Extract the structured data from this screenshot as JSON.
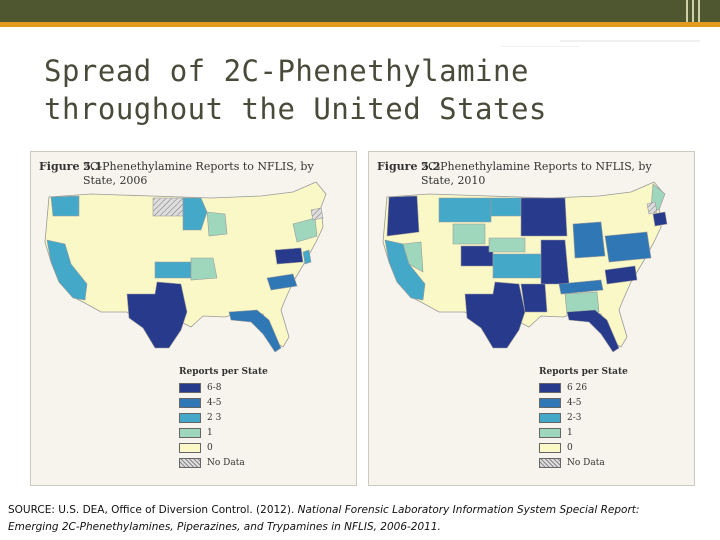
{
  "slide": {
    "title_line1": "Spread of 2C-Phenethylamine",
    "title_line2": "throughout the United States"
  },
  "figures": [
    {
      "label": "Figure 5.1",
      "title": "2C-Phenethylamine Reports to NFLIS, by State, 2006",
      "legend_title": "Reports per State",
      "legend": [
        {
          "label": "6-8",
          "color": "#283a8c"
        },
        {
          "label": "4-5",
          "color": "#2f77b5"
        },
        {
          "label": "2 3",
          "color": "#44a8c9"
        },
        {
          "label": "1",
          "color": "#9fd7bd"
        },
        {
          "label": "0",
          "color": "#fbf8c7"
        },
        {
          "label": "No Data",
          "color": "nodata"
        }
      ]
    },
    {
      "label": "Figure 5.2",
      "title": "2C-Phenethylamine Reports to NFLIS, by State, 2010",
      "legend_title": "Reports per State",
      "legend": [
        {
          "label": "6 26",
          "color": "#283a8c"
        },
        {
          "label": "4-5",
          "color": "#2f77b5"
        },
        {
          "label": "2-3",
          "color": "#44a8c9"
        },
        {
          "label": "1",
          "color": "#9fd7bd"
        },
        {
          "label": "0",
          "color": "#fbf8c7"
        },
        {
          "label": "No Data",
          "color": "nodata"
        }
      ]
    }
  ],
  "source": {
    "prefix": "SOURCE: U.S. DEA, Office of Diversion Control. (2012). ",
    "italic_line1": "National Forensic Laboratory Information System Special Report:",
    "italic_line2": "Emerging 2C-Phenethylamines, Piperazines, and Trypamines in NFLIS, 2006-2011."
  },
  "colors": {
    "topbar": "#4f5731",
    "accent_band": "#e39a1e",
    "title_text": "#4a4a3a",
    "level_6plus": "#283a8c",
    "level_4_5": "#2f77b5",
    "level_2_3": "#44a8c9",
    "level_1": "#9fd7bd",
    "level_0": "#fbf8c7"
  }
}
